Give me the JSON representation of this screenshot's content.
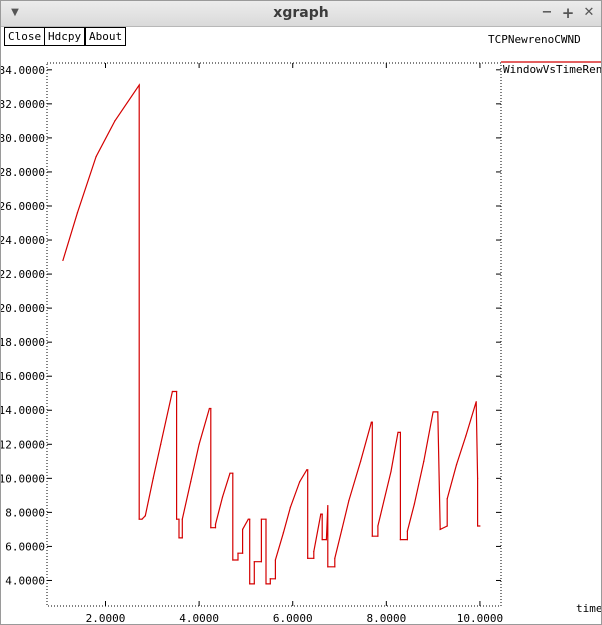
{
  "window": {
    "title": "xgraph"
  },
  "titlebar": {
    "menu_icon": "chevron-down-icon",
    "min_icon": "minimize-icon",
    "max_icon": "maximize-icon",
    "close_icon": "close-icon"
  },
  "toolbar": {
    "close_label": "Close",
    "hdcpy_label": "Hdcpy",
    "about_label": "About"
  },
  "plot": {
    "title": "TCPNewrenoCWND",
    "xlabel": "time",
    "series_label": "WindowVsTimeReno"
  },
  "colors": {
    "series": "#d40000",
    "axis": "#000000"
  },
  "chart_data": {
    "type": "line",
    "title": "TCPNewrenoCWND",
    "xlabel": "time",
    "ylabel": "",
    "xlim": [
      0.75,
      10.45
    ],
    "ylim": [
      2.5,
      34.4
    ],
    "grid": false,
    "legend": "top-right",
    "xticks": [
      2,
      4,
      6,
      8,
      10
    ],
    "xtick_labels": [
      "2.0000",
      "4.0000",
      "6.0000",
      "8.0000",
      "10.0000"
    ],
    "yticks": [
      4,
      6,
      8,
      10,
      12,
      14,
      16,
      18,
      20,
      22,
      24,
      26,
      28,
      30,
      32,
      34
    ],
    "ytick_labels": [
      "4.0000",
      "6.0000",
      "8.0000",
      "10.0000",
      "12.0000",
      "14.0000",
      "16.0000",
      "18.0000",
      "20.0000",
      "22.0000",
      "24.0000",
      "26.0000",
      "28.0000",
      "30.0000",
      "32.0000",
      "34.0000"
    ],
    "series": [
      {
        "name": "WindowVsTimeReno",
        "x": [
          1.09,
          1.4,
          1.8,
          2.2,
          2.72,
          2.72,
          2.78,
          2.85,
          3.02,
          3.18,
          3.43,
          3.52,
          3.52,
          3.57,
          3.57,
          3.64,
          3.64,
          3.82,
          4.0,
          4.22,
          4.25,
          4.25,
          4.35,
          4.35,
          4.5,
          4.66,
          4.72,
          4.72,
          4.83,
          4.83,
          4.93,
          4.93,
          5.05,
          5.08,
          5.08,
          5.18,
          5.18,
          5.33,
          5.33,
          5.43,
          5.43,
          5.52,
          5.52,
          5.63,
          5.63,
          5.8,
          5.95,
          6.15,
          6.3,
          6.32,
          6.32,
          6.45,
          6.45,
          6.6,
          6.63,
          6.63,
          6.72,
          6.75,
          6.75,
          6.9,
          6.9,
          7.05,
          7.2,
          7.45,
          7.68,
          7.7,
          7.7,
          7.82,
          7.82,
          7.95,
          8.1,
          8.25,
          8.3,
          8.3,
          8.45,
          8.45,
          8.6,
          8.8,
          9.0,
          9.1,
          9.15,
          9.15,
          9.3,
          9.3,
          9.5,
          9.7,
          9.92,
          9.95,
          9.95,
          10.0
        ],
        "y": [
          22.8,
          25.6,
          28.9,
          31.0,
          33.1,
          7.6,
          7.6,
          7.8,
          10.0,
          12.0,
          15.1,
          15.1,
          7.6,
          7.6,
          6.5,
          6.5,
          7.6,
          9.8,
          12.0,
          14.1,
          14.1,
          7.1,
          7.1,
          7.3,
          8.9,
          10.3,
          10.3,
          5.2,
          5.2,
          5.6,
          5.6,
          7.0,
          7.6,
          7.6,
          3.8,
          3.8,
          5.1,
          5.1,
          7.6,
          7.6,
          3.8,
          3.8,
          4.1,
          4.1,
          5.2,
          6.8,
          8.3,
          9.8,
          10.5,
          10.5,
          5.3,
          5.3,
          5.7,
          7.9,
          7.9,
          6.4,
          6.4,
          8.4,
          4.8,
          4.8,
          5.3,
          7.0,
          8.7,
          11.0,
          13.3,
          13.3,
          6.6,
          6.6,
          7.2,
          8.7,
          10.4,
          12.7,
          12.7,
          6.4,
          6.4,
          6.9,
          8.5,
          11.0,
          13.9,
          13.9,
          7.0,
          7.0,
          7.2,
          8.8,
          10.8,
          12.5,
          14.5,
          10.0,
          7.2,
          7.2
        ]
      }
    ]
  }
}
